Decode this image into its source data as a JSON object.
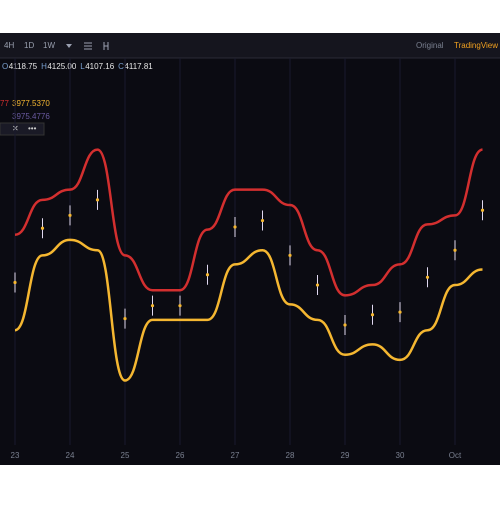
{
  "toolbar": {
    "intervals": [
      "4H",
      "1D",
      "1W"
    ],
    "right": [
      "Original",
      "TradingView"
    ]
  },
  "ohlc": [
    {
      "label": "O",
      "value": "4118.75"
    },
    {
      "label": "H",
      "value": "4125.00"
    },
    {
      "label": "L",
      "value": "4107.16"
    },
    {
      "label": "C",
      "value": "4117.81"
    }
  ],
  "indicators": [
    {
      "prefix": "77",
      "value": "3977.5370"
    },
    {
      "value": "3975.4776"
    }
  ],
  "chart_data": {
    "type": "line",
    "categories": [
      "23",
      null,
      "24",
      null,
      "25",
      null,
      "26",
      null,
      "27",
      null,
      "28",
      null,
      "29",
      null,
      "30",
      null,
      "Oct",
      null
    ],
    "ylim": [
      3900,
      4200
    ],
    "series": [
      {
        "color": "#d32f2f",
        "values": [
          4063,
          4090,
          4098,
          4129,
          4047,
          4020,
          4020,
          4067,
          4098,
          4098,
          4086,
          4051,
          4016,
          4024,
          4040,
          4071,
          4078,
          4129
        ]
      },
      {
        "color": "#f5b731",
        "values": [
          3989,
          4047,
          4059,
          4051,
          3950,
          3997,
          3997,
          3997,
          4040,
          4051,
          4009,
          3997,
          3970,
          3978,
          3966,
          3989,
          4024,
          4036
        ]
      },
      {
        "color": "#e0d8f0",
        "values": [
          4026,
          4068,
          4078,
          4090,
          3998,
          4008,
          4008,
          4032,
          4069,
          4074,
          4047,
          4024,
          3993,
          4001,
          4003,
          4030,
          4051,
          4082
        ]
      }
    ]
  }
}
